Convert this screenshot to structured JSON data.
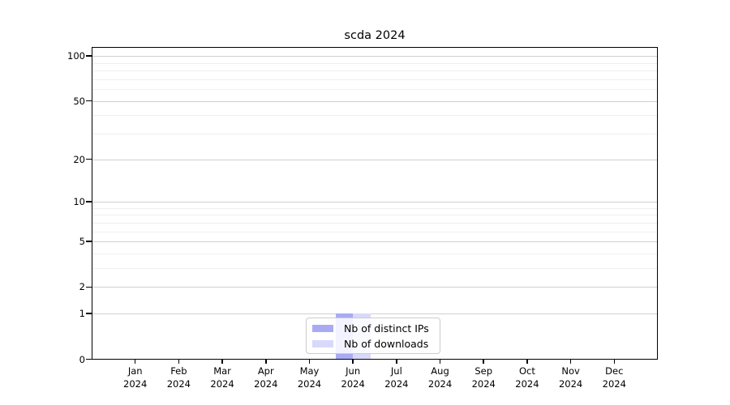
{
  "title": "scda 2024",
  "chart_data": {
    "type": "bar",
    "title": "scda 2024",
    "months": [
      "Jan",
      "Feb",
      "Mar",
      "Apr",
      "May",
      "Jun",
      "Jul",
      "Aug",
      "Sep",
      "Oct",
      "Nov",
      "Dec"
    ],
    "year": "2024",
    "series": [
      {
        "name": "Nb of distinct IPs",
        "color": "#a8abf4",
        "values": [
          0,
          0,
          0,
          0,
          0,
          1,
          0,
          0,
          0,
          0,
          0,
          0
        ]
      },
      {
        "name": "Nb of downloads",
        "color": "#d8d9fa",
        "values": [
          0,
          0,
          0,
          0,
          0,
          1,
          0,
          0,
          0,
          0,
          0,
          0
        ]
      }
    ],
    "y_scale": "log1p",
    "y_ticks_major": [
      0,
      1,
      2,
      5,
      10,
      20,
      50,
      100
    ],
    "y_ticks_minor": [
      3,
      4,
      6,
      7,
      8,
      9,
      30,
      40,
      60,
      70,
      80,
      90
    ],
    "ylim": [
      0,
      115
    ],
    "xlabel": "",
    "ylabel": "",
    "grid": true,
    "legend_position": "lower center",
    "bar_width_fraction": 0.4
  },
  "legend": {
    "items": [
      {
        "label": "Nb of distinct IPs",
        "color": "#a8abf4"
      },
      {
        "label": "Nb of downloads",
        "color": "#d8d9fa"
      }
    ]
  },
  "colors": {
    "background": "#ffffff",
    "spine": "#000000",
    "grid_major": "#d0d0d0",
    "grid_minor": "#efefef",
    "text": "#000000",
    "legend_border": "#cccccc"
  }
}
